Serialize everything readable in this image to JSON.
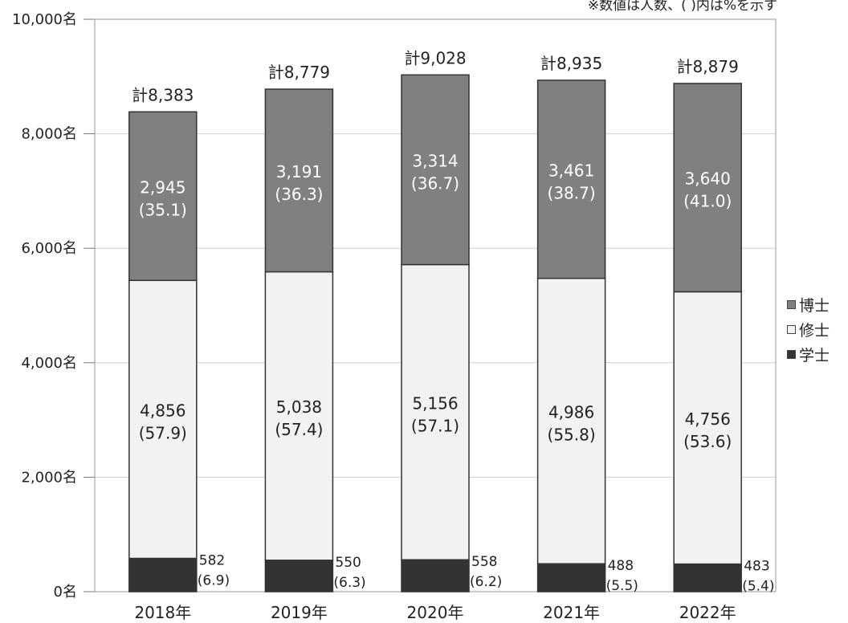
{
  "note": "※数値は人数、( )内は%を示す",
  "chart_data": {
    "type": "bar",
    "stacked": true,
    "categories": [
      "2018年",
      "2019年",
      "2020年",
      "2021年",
      "2022年"
    ],
    "totals": [
      "計8,383",
      "計8,779",
      "計9,028",
      "計8,935",
      "計8,879"
    ],
    "ylim": [
      0,
      10000
    ],
    "yticks": [
      "0名",
      "2,000名",
      "4,000名",
      "6,000名",
      "8,000名",
      "10,000名"
    ],
    "ytick_values": [
      0,
      2000,
      4000,
      6000,
      8000,
      10000
    ],
    "grid": true,
    "legend_position": "right",
    "series": [
      {
        "name": "学士",
        "color": "#333333",
        "values": [
          582,
          550,
          558,
          488,
          483
        ],
        "labels": [
          "582",
          "550",
          "558",
          "488",
          "483"
        ],
        "percents": [
          "(6.9)",
          "(6.3)",
          "(6.2)",
          "(5.5)",
          "(5.4)"
        ]
      },
      {
        "name": "修士",
        "color": "#f2f2f2",
        "values": [
          4856,
          5038,
          5156,
          4986,
          4756
        ],
        "labels": [
          "4,856",
          "5,038",
          "5,156",
          "4,986",
          "4,756"
        ],
        "percents": [
          "(57.9)",
          "(57.4)",
          "(57.1)",
          "(55.8)",
          "(53.6)"
        ]
      },
      {
        "name": "博士",
        "color": "#808080",
        "values": [
          2945,
          3191,
          3314,
          3461,
          3640
        ],
        "labels": [
          "2,945",
          "3,191",
          "3,314",
          "3,461",
          "3,640"
        ],
        "percents": [
          "(35.1)",
          "(36.3)",
          "(36.7)",
          "(38.7)",
          "(41.0)"
        ]
      }
    ]
  }
}
